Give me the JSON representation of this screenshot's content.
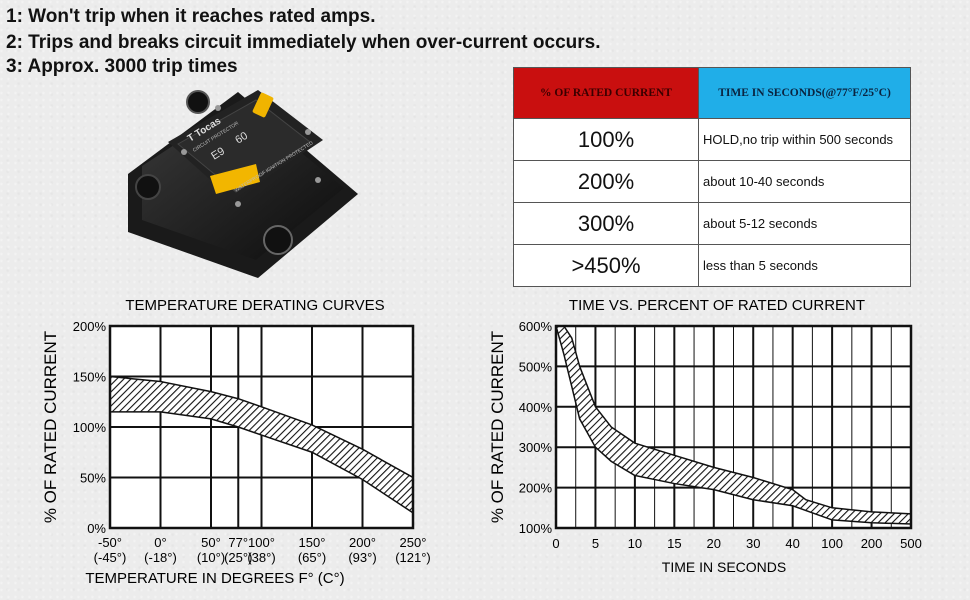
{
  "headlines": [
    "1: Won't trip when it reaches rated amps.",
    "2: Trips and breaks circuit immediately when over-current occurs.",
    "3: Approx. 3000 trip times"
  ],
  "product": {
    "brand": "T Tocas",
    "subtitle": "CIRCUIT PROTECTOR",
    "model": "E9",
    "rating": "60",
    "marking": "WATERPROOF IGNITION PROTECTED"
  },
  "table": {
    "headers": [
      "% OF RATED CURRENT",
      "TIME IN SECONDS(@77°F/25°C)"
    ],
    "rows": [
      {
        "pct": "100%",
        "desc": "HOLD,no trip within 500 seconds"
      },
      {
        "pct": "200%",
        "desc": "about 10-40 seconds"
      },
      {
        "pct": "300%",
        "desc": "about 5-12 seconds"
      },
      {
        "pct": ">450%",
        "desc": "less than 5 seconds"
      }
    ]
  },
  "colors": {
    "header_red": "#c90f0f",
    "header_blue": "#20aee8",
    "band": "#111111"
  },
  "chart_data": [
    {
      "type": "area",
      "title": "TEMPERATURE DERATING CURVES",
      "xlabel": "TEMPERATURE IN DEGREES F° (C°)",
      "ylabel": "% OF RATED CURRENT",
      "x_ticks": [
        -50,
        0,
        50,
        77,
        100,
        150,
        200,
        250
      ],
      "x_tick_labels": [
        "-50°",
        "0°",
        "50°",
        "77°",
        "100°",
        "150°",
        "200°",
        "250°"
      ],
      "x_tick_sublabels": [
        "(-45°)",
        "(-18°)",
        "(10°)",
        "(25°)",
        "(38°)",
        "(65°)",
        "(93°)",
        "(121°)"
      ],
      "xlim": [
        -50,
        250
      ],
      "y_ticks": [
        0,
        50,
        100,
        150,
        200
      ],
      "y_tick_labels": [
        "0%",
        "50%",
        "100%",
        "150%",
        "200%"
      ],
      "ylim": [
        0,
        200
      ],
      "grid": true,
      "band": {
        "upper": [
          [
            -50,
            150
          ],
          [
            0,
            145
          ],
          [
            50,
            135
          ],
          [
            77,
            128
          ],
          [
            100,
            120
          ],
          [
            150,
            102
          ],
          [
            200,
            78
          ],
          [
            250,
            50
          ]
        ],
        "lower": [
          [
            -50,
            115
          ],
          [
            0,
            115
          ],
          [
            50,
            108
          ],
          [
            77,
            100
          ],
          [
            100,
            92
          ],
          [
            150,
            75
          ],
          [
            200,
            48
          ],
          [
            250,
            15
          ]
        ]
      }
    },
    {
      "type": "area",
      "title": "TIME VS. PERCENT OF RATED CURRENT",
      "xlabel": "TIME IN SECONDS",
      "ylabel": "% OF RATED CURRENT",
      "x_ticks": [
        0,
        5,
        10,
        15,
        20,
        30,
        40,
        100,
        200,
        500
      ],
      "x_tick_labels": [
        "0",
        "5",
        "10",
        "15",
        "20",
        "30",
        "40",
        "100",
        "200",
        "500"
      ],
      "y_ticks": [
        100,
        200,
        300,
        400,
        500,
        600
      ],
      "y_tick_labels": [
        "100%",
        "200%",
        "300%",
        "400%",
        "500%",
        "600%"
      ],
      "ylim": [
        100,
        600
      ],
      "grid": true,
      "band": {
        "upper": [
          [
            1,
            600
          ],
          [
            2,
            570
          ],
          [
            3,
            500
          ],
          [
            5,
            400
          ],
          [
            7,
            350
          ],
          [
            10,
            310
          ],
          [
            15,
            280
          ],
          [
            20,
            250
          ],
          [
            30,
            225
          ],
          [
            40,
            195
          ],
          [
            60,
            170
          ],
          [
            100,
            150
          ],
          [
            200,
            140
          ],
          [
            500,
            135
          ]
        ],
        "lower": [
          [
            0,
            600
          ],
          [
            1,
            530
          ],
          [
            2,
            450
          ],
          [
            3,
            370
          ],
          [
            5,
            300
          ],
          [
            7,
            265
          ],
          [
            10,
            230
          ],
          [
            15,
            210
          ],
          [
            20,
            195
          ],
          [
            30,
            170
          ],
          [
            40,
            155
          ],
          [
            100,
            120
          ],
          [
            200,
            113
          ],
          [
            500,
            110
          ]
        ]
      }
    }
  ]
}
